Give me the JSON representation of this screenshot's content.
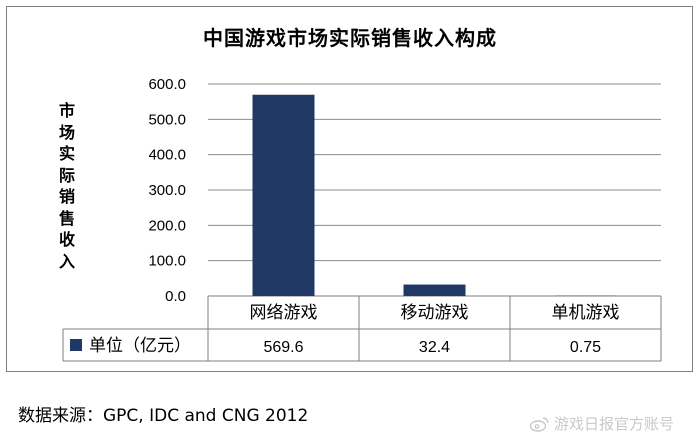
{
  "chart_data": {
    "type": "bar",
    "title": "中国游戏市场实际销售收入构成",
    "ylabel": "市场实际销售收入",
    "xlabel": "",
    "categories": [
      "网络游戏",
      "移动游戏",
      "单机游戏"
    ],
    "series": [
      {
        "name": "单位（亿元）",
        "values": [
          569.6,
          32.4,
          0.75
        ],
        "color": "#1f3864"
      }
    ],
    "value_labels": [
      "569.6",
      "32.4",
      "0.75"
    ],
    "ylim": [
      0,
      600
    ],
    "yticks": [
      "0.0",
      "100.0",
      "200.0",
      "300.0",
      "400.0",
      "500.0",
      "600.0"
    ],
    "grid": true,
    "data_table": true
  },
  "source_text": "数据来源：GPC, IDC and CNG 2012",
  "watermark_text": "游戏日报官方账号",
  "watermark_icon": "weibo-icon"
}
